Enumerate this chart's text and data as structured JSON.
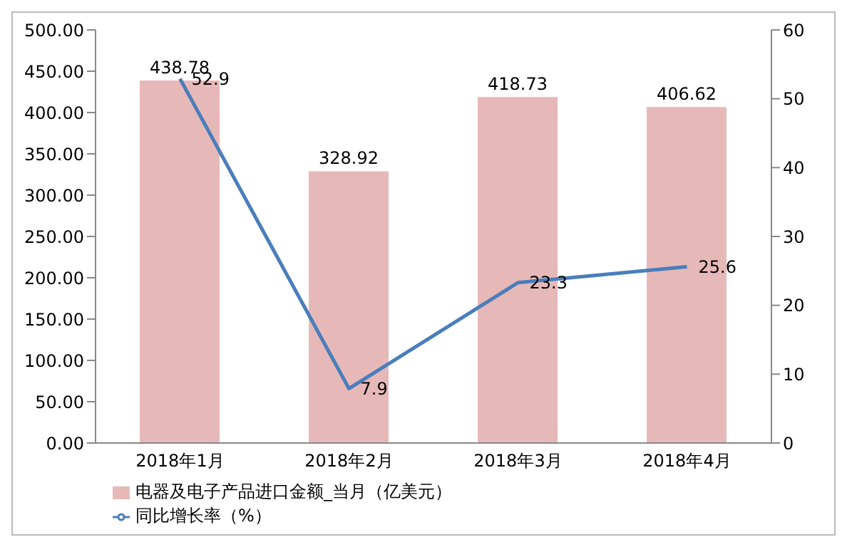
{
  "chart_data": {
    "type": "bar",
    "categories": [
      "2018年1月",
      "2018年2月",
      "2018年3月",
      "2018年4月"
    ],
    "series": [
      {
        "name": "电器及电子产品进口金额_当月（亿美元）",
        "color": "#e6b9b8",
        "values": [
          438.78,
          328.92,
          418.73,
          406.62
        ]
      },
      {
        "name": "同比增长率（%）",
        "type": "line",
        "axis": "y2",
        "color": "#4a7ebb",
        "values": [
          52.9,
          7.9,
          23.3,
          25.6
        ]
      }
    ],
    "ylim": [
      0,
      500
    ],
    "yticks": [
      {
        "value": 0,
        "label": "0.00"
      },
      {
        "value": 50,
        "label": "50.00"
      },
      {
        "value": 100,
        "label": "100.00"
      },
      {
        "value": 150,
        "label": "150.00"
      },
      {
        "value": 200,
        "label": "200.00"
      },
      {
        "value": 250,
        "label": "250.00"
      },
      {
        "value": 300,
        "label": "300.00"
      },
      {
        "value": 350,
        "label": "350.00"
      },
      {
        "value": 400,
        "label": "400.00"
      },
      {
        "value": 450,
        "label": "450.00"
      },
      {
        "value": 500,
        "label": "500.00"
      }
    ],
    "y2lim": [
      0,
      60
    ],
    "y2ticks": [
      0,
      10,
      20,
      30,
      40,
      50,
      60
    ],
    "data_labels": true,
    "legend": "bottom left",
    "grid": false,
    "marker": "none",
    "line_style": "solid"
  }
}
